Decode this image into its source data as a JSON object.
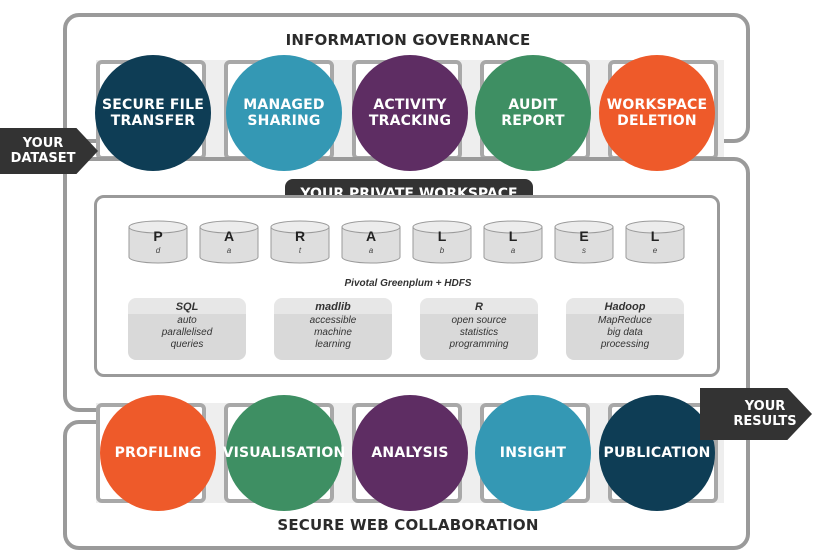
{
  "governance": {
    "title": "INFORMATION GOVERNANCE",
    "items": [
      {
        "label": "SECURE FILE\nTRANSFER",
        "color": "#0e3d55"
      },
      {
        "label": "MANAGED\nSHARING",
        "color": "#3498b4"
      },
      {
        "label": "ACTIVITY\nTRACKING",
        "color": "#5e2d63"
      },
      {
        "label": "AUDIT\nREPORT",
        "color": "#3e8f63"
      },
      {
        "label": "WORKSPACE\nDELETION",
        "color": "#ee5a2a"
      }
    ]
  },
  "dataset_arrow": "YOUR\nDATASET",
  "results_arrow": "YOUR\nRESULTS",
  "workspace": {
    "title": "YOUR PRIVATE WORKSPACE",
    "cylinders": [
      {
        "big": "P",
        "small": "d"
      },
      {
        "big": "A",
        "small": "a"
      },
      {
        "big": "R",
        "small": "t"
      },
      {
        "big": "A",
        "small": "a"
      },
      {
        "big": "L",
        "small": "b"
      },
      {
        "big": "L",
        "small": "a"
      },
      {
        "big": "E",
        "small": "s"
      },
      {
        "big": "L",
        "small": "e"
      }
    ],
    "subtitle": "Pivotal Greenplum + HDFS",
    "tools": [
      {
        "name": "SQL",
        "desc": "auto\nparallelised\nqueries"
      },
      {
        "name": "madlib",
        "desc": "accessible\nmachine\nlearning"
      },
      {
        "name": "R",
        "desc": "open source\nstatistics\nprogramming"
      },
      {
        "name": "Hadoop",
        "desc": "MapReduce\nbig data\nprocessing"
      }
    ]
  },
  "collaboration": {
    "title": "SECURE WEB COLLABORATION",
    "items": [
      {
        "label": "PROFILING",
        "color": "#ee5a2a"
      },
      {
        "label": "VISUALISATION",
        "color": "#3e8f63"
      },
      {
        "label": "ANALYSIS",
        "color": "#5e2d63"
      },
      {
        "label": "INSIGHT",
        "color": "#3498b4"
      },
      {
        "label": "PUBLICATION",
        "color": "#0e3d55"
      }
    ]
  }
}
